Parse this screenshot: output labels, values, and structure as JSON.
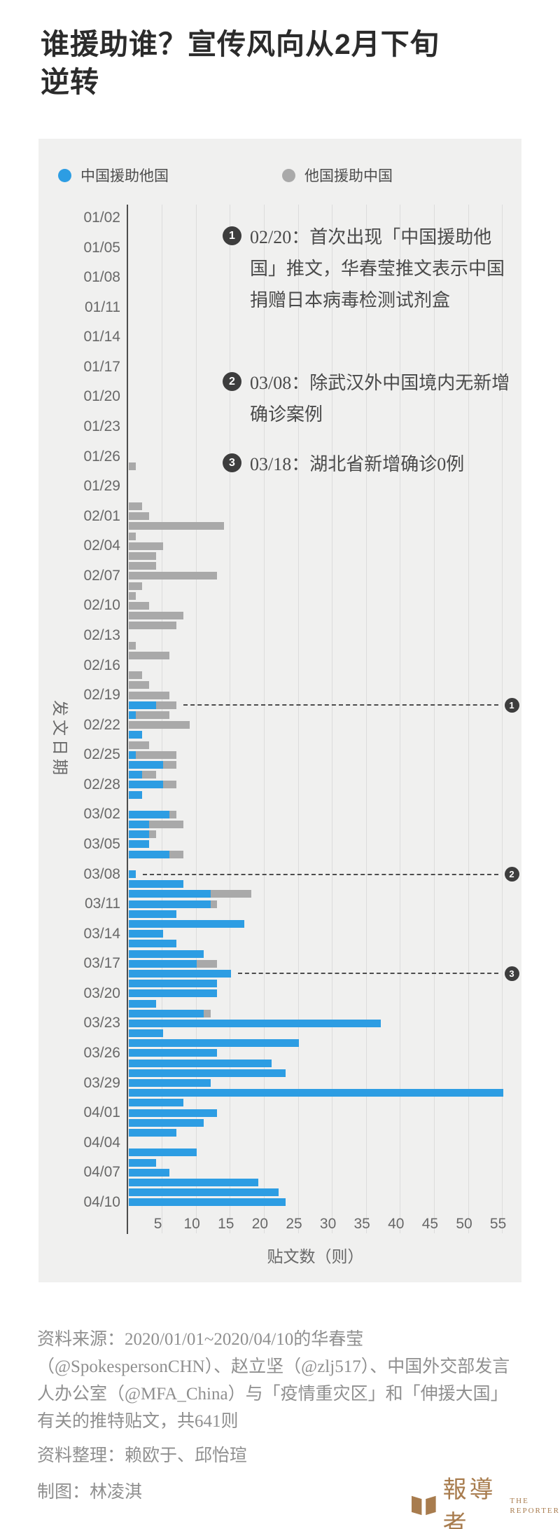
{
  "title": "谁援助谁？宣传风向从2月下旬逆转",
  "legend": {
    "items": [
      {
        "label": "中国援助他国",
        "color": "#2d9de3"
      },
      {
        "label": "他国援助中国",
        "color": "#a9a9a9"
      }
    ]
  },
  "annotations": [
    {
      "num": "1",
      "text": "02/20：首次出现「中国援助他国」推文，华春莹推文表示中国捐赠日本病毒检测试剂盒"
    },
    {
      "num": "2",
      "text": "03/08：除武汉外中国境内无新增确诊案例"
    },
    {
      "num": "3",
      "text": "03/18：湖北省新增确诊0例"
    }
  ],
  "markers": [
    {
      "num": "1",
      "date": "02/20"
    },
    {
      "num": "2",
      "date": "03/08"
    },
    {
      "num": "3",
      "date": "03/18"
    }
  ],
  "colors": {
    "china_blue": "#2d9de3",
    "others_gray": "#a9a9a9",
    "panel_bg": "#f0f0ef",
    "gridline": "#dcdcdc",
    "axis": "#4d4d4d",
    "badge": "#3d3d3d",
    "brand_bronze": "#a87c4e"
  },
  "chart_data": {
    "type": "bar",
    "orientation": "horizontal",
    "stacked": true,
    "title": "谁援助谁？宣传风向从2月下旬逆转",
    "xlabel": "贴文数（则）",
    "ylabel": "发文日期",
    "x_ticks": [
      5,
      10,
      15,
      20,
      25,
      30,
      35,
      40,
      45,
      50,
      55
    ],
    "xlim": [
      0,
      58
    ],
    "grid": "vertical",
    "legend_position": "top",
    "series_names": [
      "中国援助他国",
      "他国援助中国"
    ],
    "row_format": [
      "date",
      "中国援助他国(blue)",
      "他国援助中国(gray)"
    ],
    "rows": [
      [
        "01/02",
        0,
        0
      ],
      [
        "01/03",
        0,
        0
      ],
      [
        "01/04",
        0,
        0
      ],
      [
        "01/05",
        0,
        0
      ],
      [
        "01/06",
        0,
        0
      ],
      [
        "01/07",
        0,
        0
      ],
      [
        "01/08",
        0,
        0
      ],
      [
        "01/09",
        0,
        0
      ],
      [
        "01/10",
        0,
        0
      ],
      [
        "01/11",
        0,
        0
      ],
      [
        "01/12",
        0,
        0
      ],
      [
        "01/13",
        0,
        0
      ],
      [
        "01/14",
        0,
        0
      ],
      [
        "01/15",
        0,
        0
      ],
      [
        "01/16",
        0,
        0
      ],
      [
        "01/17",
        0,
        0
      ],
      [
        "01/18",
        0,
        0
      ],
      [
        "01/19",
        0,
        0
      ],
      [
        "01/20",
        0,
        0
      ],
      [
        "01/21",
        0,
        0
      ],
      [
        "01/22",
        0,
        0
      ],
      [
        "01/23",
        0,
        0
      ],
      [
        "01/24",
        0,
        0
      ],
      [
        "01/25",
        0,
        0
      ],
      [
        "01/26",
        0,
        0
      ],
      [
        "01/27",
        0,
        1
      ],
      [
        "01/28",
        0,
        0
      ],
      [
        "01/29",
        0,
        0
      ],
      [
        "01/30",
        0,
        0
      ],
      [
        "01/31",
        0,
        2
      ],
      [
        "02/01",
        0,
        3
      ],
      [
        "02/02",
        0,
        14
      ],
      [
        "02/03",
        0,
        1
      ],
      [
        "02/04",
        0,
        5
      ],
      [
        "02/05",
        0,
        4
      ],
      [
        "02/06",
        0,
        4
      ],
      [
        "02/07",
        0,
        13
      ],
      [
        "02/08",
        0,
        2
      ],
      [
        "02/09",
        0,
        1
      ],
      [
        "02/10",
        0,
        3
      ],
      [
        "02/11",
        0,
        8
      ],
      [
        "02/12",
        0,
        7
      ],
      [
        "02/13",
        0,
        0
      ],
      [
        "02/14",
        0,
        1
      ],
      [
        "02/15",
        0,
        6
      ],
      [
        "02/16",
        0,
        0
      ],
      [
        "02/17",
        0,
        2
      ],
      [
        "02/18",
        0,
        3
      ],
      [
        "02/19",
        0,
        6
      ],
      [
        "02/20",
        4,
        3
      ],
      [
        "02/21",
        1,
        5
      ],
      [
        "02/22",
        0,
        9
      ],
      [
        "02/23",
        2,
        0
      ],
      [
        "02/24",
        0,
        3
      ],
      [
        "02/25",
        1,
        6
      ],
      [
        "02/26",
        5,
        2
      ],
      [
        "02/27",
        2,
        2
      ],
      [
        "02/28",
        5,
        2
      ],
      [
        "02/29",
        2,
        0
      ],
      [
        "03/01",
        0,
        0
      ],
      [
        "03/02",
        6,
        1
      ],
      [
        "03/03",
        3,
        5
      ],
      [
        "03/04",
        3,
        1
      ],
      [
        "03/05",
        3,
        0
      ],
      [
        "03/06",
        6,
        2
      ],
      [
        "03/07",
        0,
        0
      ],
      [
        "03/08",
        1,
        0
      ],
      [
        "03/09",
        8,
        0
      ],
      [
        "03/10",
        12,
        6
      ],
      [
        "03/11",
        12,
        1
      ],
      [
        "03/12",
        7,
        0
      ],
      [
        "03/13",
        17,
        0
      ],
      [
        "03/14",
        5,
        0
      ],
      [
        "03/15",
        7,
        0
      ],
      [
        "03/16",
        11,
        0
      ],
      [
        "03/17",
        10,
        3
      ],
      [
        "03/18",
        15,
        0
      ],
      [
        "03/19",
        13,
        0
      ],
      [
        "03/20",
        13,
        0
      ],
      [
        "03/21",
        4,
        0
      ],
      [
        "03/22",
        11,
        1
      ],
      [
        "03/23",
        37,
        0
      ],
      [
        "03/24",
        5,
        0
      ],
      [
        "03/25",
        25,
        0
      ],
      [
        "03/26",
        13,
        0
      ],
      [
        "03/27",
        21,
        0
      ],
      [
        "03/28",
        23,
        0
      ],
      [
        "03/29",
        12,
        0
      ],
      [
        "03/30",
        55,
        0
      ],
      [
        "03/31",
        8,
        0
      ],
      [
        "04/01",
        13,
        0
      ],
      [
        "04/02",
        11,
        0
      ],
      [
        "04/03",
        7,
        0
      ],
      [
        "04/04",
        0,
        0
      ],
      [
        "04/05",
        10,
        0
      ],
      [
        "04/06",
        4,
        0
      ],
      [
        "04/07",
        6,
        0
      ],
      [
        "04/08",
        19,
        0
      ],
      [
        "04/09",
        22,
        0
      ],
      [
        "04/10",
        23,
        0
      ]
    ]
  },
  "footer": {
    "source": "资料来源：2020/01/01~2020/04/10的华春莹（@SpokespersonCHN）、赵立坚（@zlj517）、中国外交部发言人办公室（@MFA_China）与「疫情重灾区」和「伸援大国」有关的推特贴文，共641则",
    "credit_data": "资料整理：赖欧于、邱怡瑄",
    "credit_chart": "制图：林凌淇",
    "brand_cjk": "報導者",
    "brand_en_1": "THE",
    "brand_en_2": "REPORTER"
  }
}
